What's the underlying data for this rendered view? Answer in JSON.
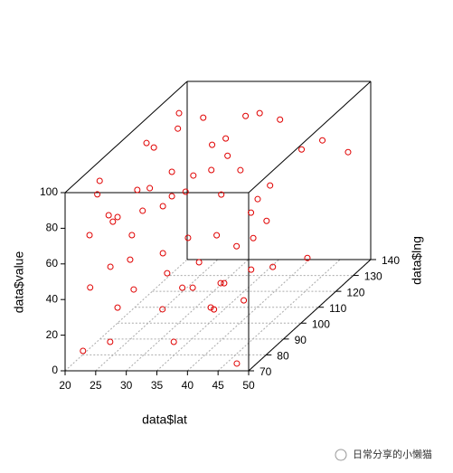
{
  "chart_data": {
    "type": "scatter3d",
    "xlabel": "data$lat",
    "ylabel": "data$lng",
    "zlabel": "data$value",
    "xlim": [
      20,
      50
    ],
    "xticks": [
      20,
      25,
      30,
      35,
      40,
      45,
      50
    ],
    "ylim": [
      70,
      140
    ],
    "yticks": [
      70,
      80,
      90,
      100,
      110,
      120,
      130,
      140
    ],
    "zlim": [
      0,
      100
    ],
    "zticks": [
      0,
      20,
      40,
      60,
      80,
      100
    ],
    "color": "#e00000",
    "grid": true,
    "x": [
      21.5,
      22,
      22.1,
      22.8,
      23.7,
      24.3,
      23.7,
      24.3,
      24.8,
      25.5,
      25.5,
      26.1,
      23.9,
      25.1,
      25.8,
      27,
      28,
      28.9,
      28,
      28.7,
      28.9,
      23.8,
      25.6,
      30.5,
      35.2,
      30,
      30.4,
      30.7,
      32.2,
      26.9,
      32.5,
      31.2,
      32.7,
      32,
      32.8,
      38.3,
      38.1,
      34.3,
      34.4,
      32.4,
      34.7,
      35.2,
      34.7,
      36.4,
      36.4,
      36.6,
      38.7,
      42.1,
      46.3,
      39,
      39.7,
      42.5,
      47.5,
      43.5,
      38.3,
      32.6,
      39.2,
      36.5,
      35.8,
      32.3,
      26.4,
      24.1,
      22.7
    ],
    "y": [
      75,
      77,
      77,
      80,
      82,
      85,
      83,
      85,
      79,
      89,
      88,
      90,
      103,
      103,
      89,
      94,
      98,
      100,
      98,
      98,
      100,
      122,
      115,
      89,
      79,
      104,
      104,
      106,
      104,
      125,
      110,
      115,
      115,
      120,
      112,
      97,
      90,
      93,
      120,
      130,
      130,
      115,
      125,
      130,
      128,
      135,
      140,
      140,
      140,
      110,
      120,
      130,
      72,
      90,
      95,
      93,
      88,
      120,
      125,
      120,
      92,
      83,
      79
    ],
    "z": [
      6.7,
      69.9,
      40.5,
      97.7,
      76.6,
      72.9,
      46.8,
      22.1,
      8.2,
      59.2,
      46.3,
      83.7,
      98.4,
      95.9,
      28.7,
      81.1,
      67.4,
      71.2,
      41,
      29.8,
      84.9,
      98.2,
      95.8,
      17.6,
      8.2,
      70.2,
      44.3,
      77.5,
      30.6,
      93,
      77,
      86.7,
      58.8,
      85.8,
      38.6,
      25.1,
      17.7,
      26.1,
      68,
      89.5,
      91.1,
      29.8,
      39.7,
      50.5,
      32.4,
      83,
      61.8,
      66.9,
      60.3,
      21.1,
      13.7,
      9.8,
      2.3,
      21.7,
      26.9,
      26.1,
      18.4,
      29.9,
      47.3,
      76.1,
      70.2,
      72.1,
      91
    ]
  },
  "watermark": "日常分享的小懒猫"
}
